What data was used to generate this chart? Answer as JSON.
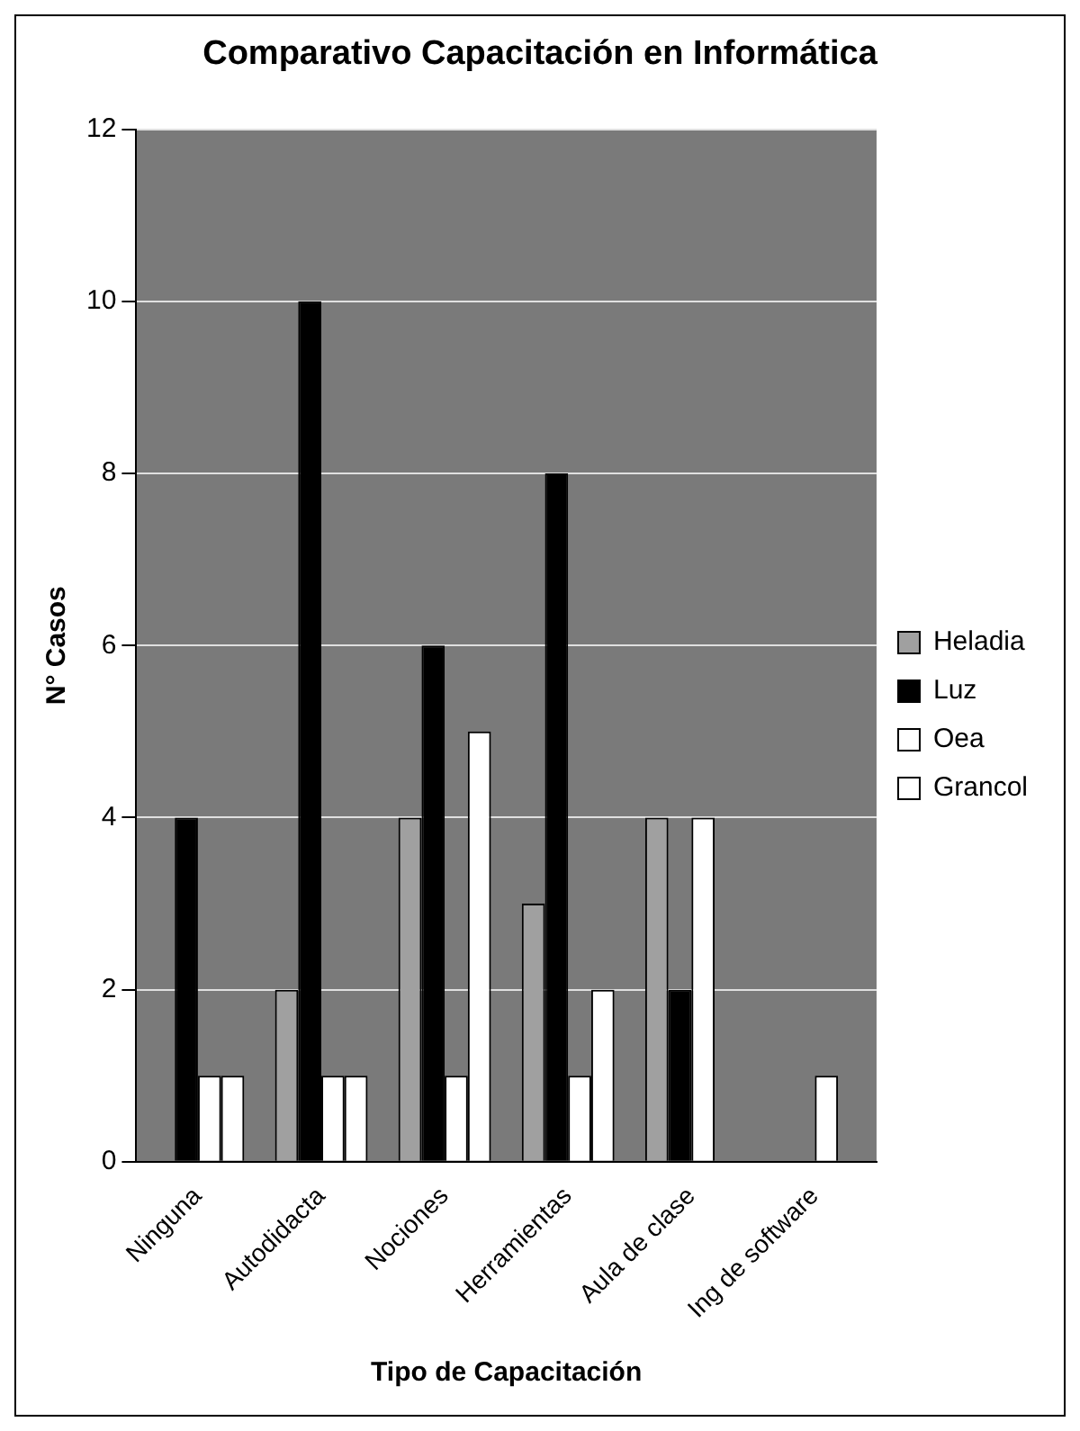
{
  "chart_data": {
    "type": "bar",
    "title": "Comparativo Capacitación en Informática",
    "xlabel": "Tipo de Capacitación",
    "ylabel": "N° Casos",
    "categories": [
      "Ninguna",
      "Autodidacta",
      "Nociones",
      "Herramientas",
      "Aula de clase",
      "Ing de software"
    ],
    "series": [
      {
        "name": "Heladia",
        "color": "#a0a0a0",
        "values": [
          0,
          2,
          4,
          3,
          4,
          0
        ]
      },
      {
        "name": "Luz",
        "color": "#000000",
        "values": [
          4,
          10,
          6,
          8,
          2,
          0
        ]
      },
      {
        "name": "Oea",
        "color": "#ffffff",
        "values": [
          1,
          1,
          1,
          1,
          4,
          1
        ]
      },
      {
        "name": "Grancol",
        "color": "#ffffff",
        "values": [
          1,
          1,
          5,
          2,
          0,
          0
        ]
      }
    ],
    "ylim": [
      0,
      12
    ],
    "yticks": [
      0,
      2,
      4,
      6,
      8,
      10,
      12
    ],
    "grid": "y",
    "legend": "right"
  }
}
